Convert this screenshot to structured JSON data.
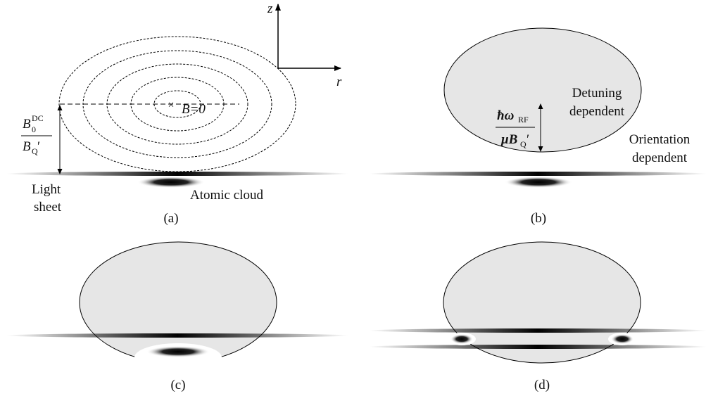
{
  "panels": [
    {
      "label": "(a)",
      "axis_z": "z",
      "axis_r": "r",
      "field_zero": "B=0",
      "height_fraction": {
        "numerator": [
          "B",
          "0",
          "DC"
        ],
        "denominator": [
          "B",
          "Q",
          "′"
        ]
      },
      "light_sheet": [
        "Light",
        "sheet"
      ],
      "cloud": "Atomic cloud"
    },
    {
      "label": "(b)",
      "detuning": [
        "Detuning",
        "dependent"
      ],
      "resonance_fraction": {
        "numerator": [
          "ħω",
          "RF"
        ],
        "denominator": [
          "μB",
          "Q",
          "′"
        ]
      },
      "orientation": [
        "Orientation",
        "dependent"
      ]
    },
    {
      "label": "(c)"
    },
    {
      "label": "(d)"
    }
  ]
}
